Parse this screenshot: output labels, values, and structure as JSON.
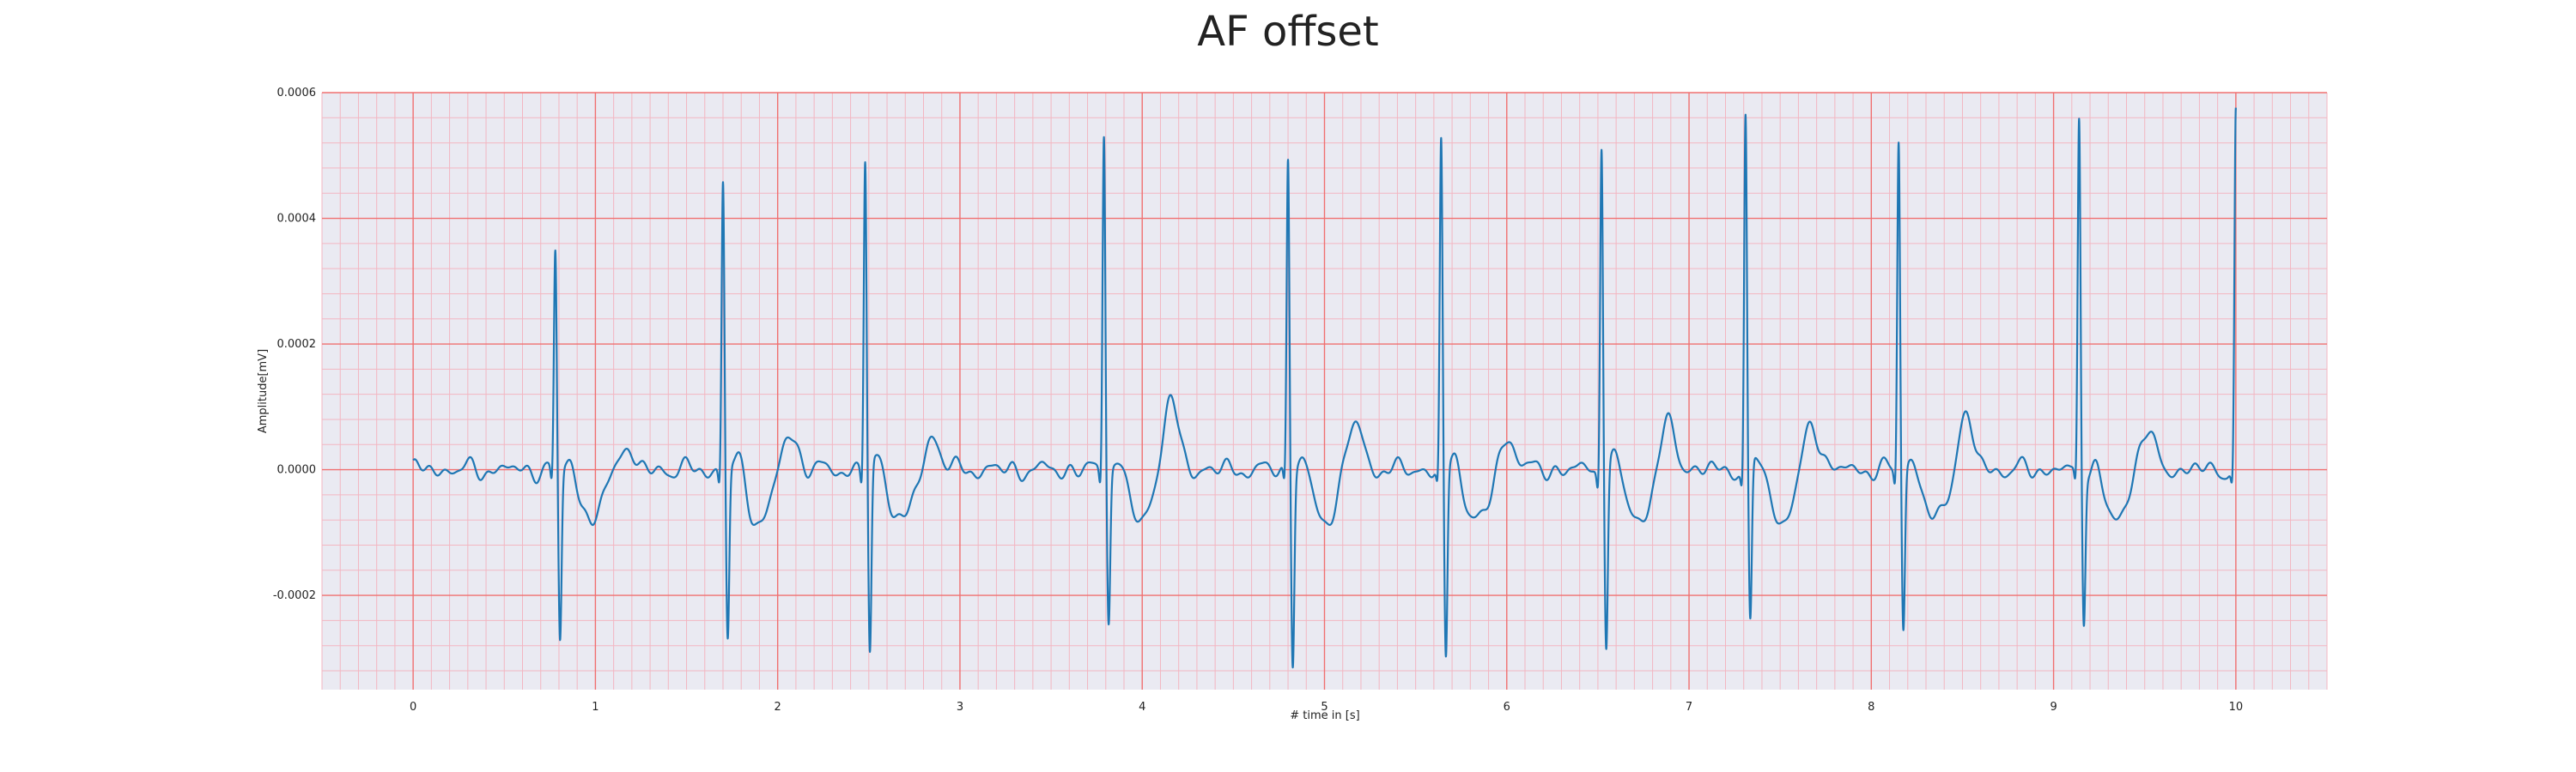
{
  "chart_data": {
    "type": "line",
    "title": "AF offset",
    "xlabel": "# time in [s]",
    "ylabel": "Amplitude[mV]",
    "xlim": [
      -0.5,
      10.5
    ],
    "ylim": [
      -0.00035,
      0.0006
    ],
    "x_ticks": [
      0,
      1,
      2,
      3,
      4,
      5,
      6,
      7,
      8,
      9,
      10
    ],
    "x_tick_labels": [
      "0",
      "1",
      "2",
      "3",
      "4",
      "5",
      "6",
      "7",
      "8",
      "9",
      "10"
    ],
    "y_ticks": [
      -0.0002,
      0.0,
      0.0002,
      0.0004,
      0.0006
    ],
    "y_tick_labels": [
      "-0.0002",
      "0.0000",
      "0.0002",
      "0.0004",
      "0.0006"
    ],
    "grid": true,
    "minor_grid": true,
    "series": [
      {
        "name": "",
        "color": "#1f77b4",
        "r_peak_times": [
          0.78,
          1.7,
          2.48,
          3.79,
          4.8,
          5.64,
          6.52,
          7.31,
          8.15,
          9.14,
          10.0
        ],
        "r_peak_values": [
          0.000345,
          0.000462,
          0.0005,
          0.000545,
          0.000502,
          0.00052,
          0.000532,
          0.000565,
          0.00053,
          0.000555,
          0.000548
        ],
        "s_trough_values": [
          -0.000275,
          -0.000272,
          -0.000298,
          -0.000238,
          -0.000302,
          -0.000305,
          -0.000278,
          -0.000255,
          -0.000252,
          -0.000242,
          -0.0001
        ],
        "t_wave_values": [
          4.5e-05,
          6.5e-05,
          6e-05,
          0.000115,
          8e-05,
          6e-05,
          7.8e-05,
          8e-05,
          9e-05,
          7e-05,
          0.0
        ],
        "baseline_min": -8e-05
      }
    ]
  },
  "colors": {
    "plot_background": "#eaeaf2",
    "major_grid": "#f07070",
    "minor_grid": "#f3b6c1",
    "line": "#1f77b4"
  }
}
